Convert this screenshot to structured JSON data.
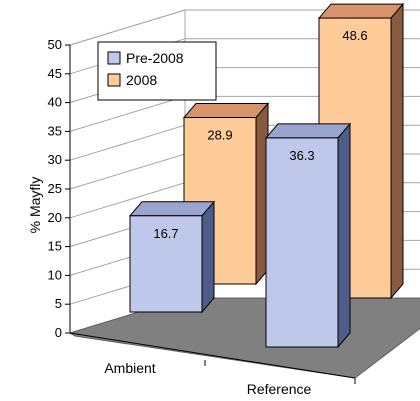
{
  "chart_data": {
    "type": "bar",
    "title": "",
    "xlabel": "",
    "ylabel": "% Mayfly",
    "ylim": [
      0,
      50
    ],
    "yticks": [
      0,
      5,
      10,
      15,
      20,
      25,
      30,
      35,
      40,
      45,
      50
    ],
    "categories": [
      "Ambient",
      "Reference"
    ],
    "series": [
      {
        "name": "Pre-2008",
        "values": [
          16.7,
          36.3
        ]
      },
      {
        "name": "2008",
        "values": [
          28.9,
          48.6
        ]
      }
    ],
    "data_labels": true,
    "grid": true,
    "legend_position": "top-left",
    "style": "3d-clustered-column",
    "colors": {
      "pre2008_front": "#BFC8EA",
      "pre2008_side": "#4E5C8A",
      "pre2008_top": "#9AA5CF",
      "y2008_front": "#FFCC99",
      "y2008_side": "#8A5A40",
      "y2008_top": "#D9936A",
      "floor": "#808080",
      "grid": "#A6A6A6"
    }
  }
}
